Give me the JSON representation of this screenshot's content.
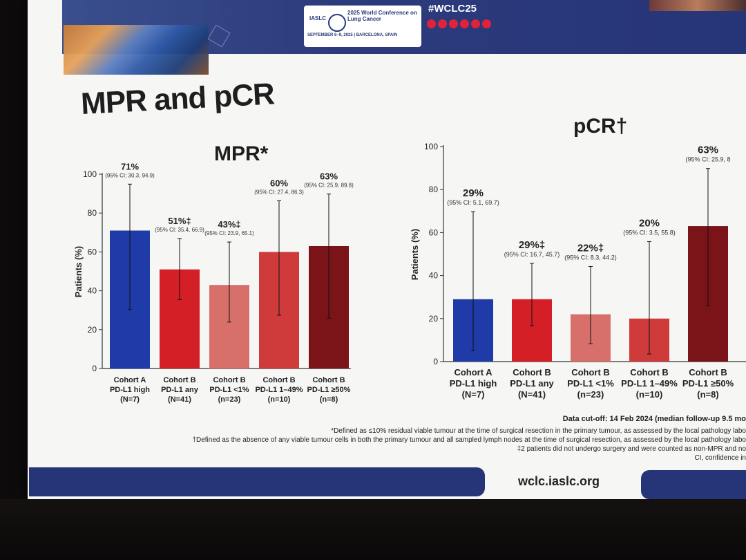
{
  "conference": {
    "org": "IASLC",
    "title": "2025 World Conference on Lung Cancer",
    "dates": "SEPTEMBER 6–9, 2025 | BARCELONA, SPAIN",
    "hashtag": "#WCLC25"
  },
  "slide_title": "MPR and pCR",
  "chart_data": [
    {
      "type": "bar",
      "title": "MPR*",
      "ylabel": "Patients (%)",
      "ylim": [
        0,
        100
      ],
      "yticks": [
        0,
        20,
        40,
        60,
        80,
        100
      ],
      "categories": [
        {
          "line1": "Cohort A",
          "line2": "PD-L1 high",
          "line3": "(N=7)"
        },
        {
          "line1": "Cohort B",
          "line2": "PD-L1 any",
          "line3": "(N=41)"
        },
        {
          "line1": "Cohort B",
          "line2": "PD-L1 <1%",
          "line3": "(n=23)"
        },
        {
          "line1": "Cohort B",
          "line2": "PD-L1 1–49%",
          "line3": "(n=10)"
        },
        {
          "line1": "Cohort B",
          "line2": "PD-L1 ≥50%",
          "line3": "(n=8)"
        }
      ],
      "values": [
        71,
        51,
        43,
        60,
        63
      ],
      "ci": [
        [
          30.3,
          94.9
        ],
        [
          35.4,
          66.9
        ],
        [
          23.9,
          65.1
        ],
        [
          27.4,
          86.3
        ],
        [
          25.9,
          89.8
        ]
      ],
      "value_labels": [
        "71%",
        "51%‡",
        "43%‡",
        "60%",
        "63%"
      ],
      "ci_labels": [
        "(95% CI: 30.3, 94.9)",
        "(95% CI: 35.4, 66.9)",
        "(95% CI: 23.9, 65.1)",
        "(95% CI: 27.4, 86.3)",
        "(95% CI: 25.9, 89.8)"
      ],
      "colors": [
        "#1f3ba8",
        "#d41f26",
        "#d7706a",
        "#cf3b3b",
        "#7a1418"
      ]
    },
    {
      "type": "bar",
      "title": "pCR†",
      "ylabel": "Patients (%)",
      "ylim": [
        0,
        100
      ],
      "yticks": [
        0,
        20,
        40,
        60,
        80,
        100
      ],
      "categories": [
        {
          "line1": "Cohort A",
          "line2": "PD-L1 high",
          "line3": "(N=7)"
        },
        {
          "line1": "Cohort B",
          "line2": "PD-L1 any",
          "line3": "(N=41)"
        },
        {
          "line1": "Cohort B",
          "line2": "PD-L1 <1%",
          "line3": "(n=23)"
        },
        {
          "line1": "Cohort B",
          "line2": "PD-L1 1–49%",
          "line3": "(n=10)"
        },
        {
          "line1": "Cohort B",
          "line2": "PD-L1 ≥50%",
          "line3": "(n=8)"
        }
      ],
      "values": [
        29,
        29,
        22,
        20,
        63
      ],
      "ci": [
        [
          5.1,
          69.7
        ],
        [
          16.7,
          45.7
        ],
        [
          8.3,
          44.2
        ],
        [
          3.5,
          55.8
        ],
        [
          25.9,
          89.8
        ]
      ],
      "value_labels": [
        "29%",
        "29%‡",
        "22%‡",
        "20%",
        "63%"
      ],
      "ci_labels": [
        "(95% CI: 5.1, 69.7)",
        "(95% CI: 16.7, 45.7)",
        "(95% CI: 8.3, 44.2)",
        "(95% CI: 3.5, 55.8)",
        "(95% CI: 25.9, 8"
      ],
      "colors": [
        "#1f3ba8",
        "#d41f26",
        "#d7706a",
        "#cf3b3b",
        "#7a1418"
      ]
    }
  ],
  "data_cutoff": "Data cut-off: 14 Feb 2024 (median follow-up 9.5 mo",
  "footnotes": [
    "*Defined as ≤10% residual viable tumour at the time of surgical resection in the primary tumour, as assessed by the local pathology labo",
    "†Defined as the absence of any viable tumour cells in both the primary tumour and all sampled lymph nodes at the time of surgical resection, as assessed by the local pathology labo",
    "‡2 patients did not undergo surgery and were counted as non-MPR and no",
    "CI, confidence in"
  ],
  "footer_url": "wclc.iaslc.org"
}
